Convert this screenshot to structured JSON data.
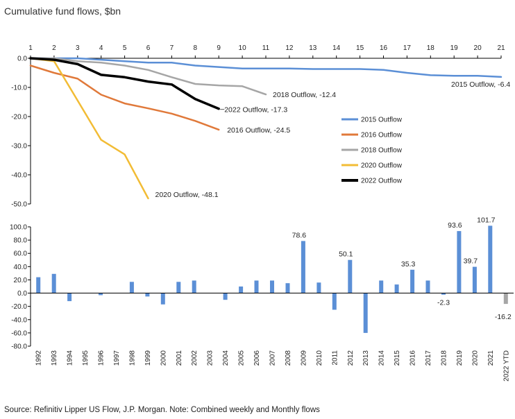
{
  "title": "Cumulative fund flows, $bn",
  "source": "Source: Refinitiv Lipper US Flow, J.P. Morgan. Note: Combined weekly and Monthly flows",
  "chart_data": [
    {
      "type": "line",
      "x": [
        1,
        2,
        3,
        4,
        5,
        6,
        7,
        8,
        9,
        10,
        11,
        12,
        13,
        14,
        15,
        16,
        17,
        18,
        19,
        20,
        21
      ],
      "xlim": [
        1,
        21
      ],
      "ylim": [
        -50,
        0
      ],
      "yticks": [
        0,
        -10,
        -20,
        -30,
        -40,
        -50
      ],
      "ytick_labels": [
        "0.0",
        "-10.0",
        "-20.0",
        "-30.0",
        "-40.0",
        "-50.0"
      ],
      "xtick_labels": [
        "1",
        "2",
        "3",
        "4",
        "5",
        "6",
        "7",
        "8",
        "9",
        "10",
        "11",
        "12",
        "13",
        "14",
        "15",
        "16",
        "17",
        "18",
        "19",
        "20",
        "21"
      ],
      "legend_position": "right",
      "series": [
        {
          "name": "2015 Outflow",
          "color": "#5b8fd6",
          "width": 2.5,
          "x": [
            1,
            2,
            3,
            4,
            5,
            6,
            7,
            8,
            9,
            10,
            11,
            12,
            13,
            14,
            15,
            16,
            17,
            18,
            19,
            20,
            21
          ],
          "values": [
            0,
            0,
            0,
            -0.5,
            -1,
            -1.5,
            -1.5,
            -2.5,
            -3,
            -3.5,
            -3.5,
            -3.5,
            -3.7,
            -3.7,
            -3.7,
            -4.0,
            -5.0,
            -5.8,
            -6.0,
            -6.0,
            -6.4
          ],
          "label": "2015 Outflow, -6.4"
        },
        {
          "name": "2016 Outflow",
          "color": "#e0793a",
          "width": 2.5,
          "x": [
            1,
            2,
            3,
            4,
            5,
            6,
            7,
            8,
            9
          ],
          "values": [
            -2.5,
            -5,
            -7,
            -12.5,
            -15.5,
            -17.2,
            -19,
            -21.5,
            -24.5
          ],
          "label": "2016 Outflow, -24.5"
        },
        {
          "name": "2018 Outflow",
          "color": "#a6a6a6",
          "width": 2.5,
          "x": [
            1,
            2,
            3,
            4,
            5,
            6,
            7,
            8,
            9,
            10,
            11
          ],
          "values": [
            0,
            0,
            -1,
            -1.5,
            -2.5,
            -4,
            -6.5,
            -8.8,
            -9.3,
            -9.6,
            -12.4
          ],
          "label": "2018 Outflow, -12.4"
        },
        {
          "name": "2020 Outflow",
          "color": "#f2bc35",
          "width": 2.5,
          "x": [
            1,
            2,
            3,
            4,
            5,
            6
          ],
          "values": [
            0,
            -1,
            -14.5,
            -28,
            -33,
            -48.1
          ],
          "label": "2020 Outflow, -48.1"
        },
        {
          "name": "2022 Outflow",
          "color": "#000000",
          "width": 3.5,
          "x": [
            1,
            2,
            3,
            4,
            5,
            6,
            7,
            8,
            9
          ],
          "values": [
            0,
            -0.5,
            -2,
            -5.7,
            -6.5,
            -8,
            -9,
            -14,
            -17.3
          ],
          "label": "2022 Outflow, -17.3"
        }
      ]
    },
    {
      "type": "bar",
      "categories": [
        "1992",
        "1993",
        "1994",
        "1995",
        "1996",
        "1997",
        "1998",
        "1999",
        "2000",
        "2001",
        "2002",
        "2003",
        "2004",
        "2005",
        "2006",
        "2007",
        "2008",
        "2009",
        "2010",
        "2011",
        "2012",
        "2013",
        "2014",
        "2015",
        "2016",
        "2017",
        "2018",
        "2019",
        "2020",
        "2021",
        "2022 YTD"
      ],
      "values": [
        24,
        29,
        -12,
        0,
        -3,
        0,
        17,
        -5,
        -17,
        17,
        19,
        0,
        -10,
        10,
        19,
        19,
        15,
        78.6,
        16,
        -25,
        50.1,
        -60,
        19,
        13,
        35.3,
        19,
        -2.3,
        93.6,
        39.7,
        101.7,
        -16.2
      ],
      "data_labels": {
        "9": "78.6",
        "12": "50.1",
        "16": "35.3",
        "18": "-2.3",
        "19": "93.6",
        "20": "39.7",
        "21": "101.7",
        "22 YTD": "-16.2"
      },
      "labeled": [
        {
          "category": "2009",
          "text": "78.6"
        },
        {
          "category": "2012",
          "text": "50.1"
        },
        {
          "category": "2016",
          "text": "35.3"
        },
        {
          "category": "2018",
          "text": "-2.3"
        },
        {
          "category": "2019",
          "text": "93.6"
        },
        {
          "category": "2020",
          "text": "39.7"
        },
        {
          "category": "2021",
          "text": "101.7"
        },
        {
          "category": "2022 YTD",
          "text": "-16.2"
        }
      ],
      "color": "#5b8fd6",
      "neg_last_color": "#a6a6a6",
      "ylim": [
        -80,
        100
      ],
      "yticks": [
        100,
        80,
        60,
        40,
        20,
        0,
        -20,
        -40,
        -60,
        -80
      ],
      "ytick_labels": [
        "100.0",
        "80.0",
        "60.0",
        "40.0",
        "20.0",
        "0.0",
        "-20.0",
        "-40.0",
        "-60.0",
        "-80.0"
      ]
    }
  ]
}
